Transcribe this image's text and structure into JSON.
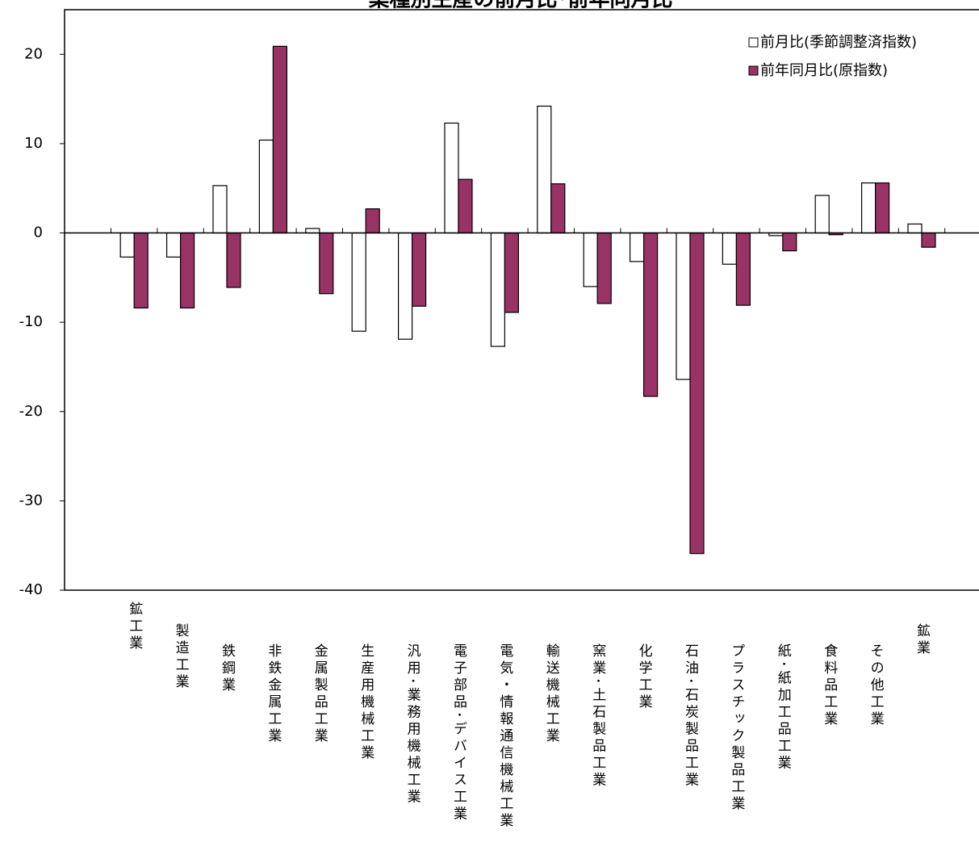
{
  "chart_data": {
    "type": "bar",
    "title": "業種別生産の前月比･前年同月比",
    "categories": [
      "鉱工業",
      "製造工業",
      "鉄鋼業",
      "非鉄金属工業",
      "金属製品工業",
      "生産用機械工業",
      "汎用･業務用機械工業",
      "電子部品･デバイス工業",
      "電気・情報通信機械工業",
      "輸送機械工業",
      "窯業･土石製品工業",
      "化学工業",
      "石油･石炭製品工業",
      "プラスチック製品工業",
      "紙･紙加工品工業",
      "食料品工業",
      "その他工業",
      "鉱業"
    ],
    "series": [
      {
        "name": "前月比(季節調整済指数)",
        "color": "#ffffff",
        "values": [
          -2.7,
          -2.7,
          5.3,
          10.4,
          0.5,
          -11.0,
          -11.9,
          12.3,
          -12.7,
          14.2,
          -6.0,
          -3.2,
          -16.4,
          -3.5,
          -0.3,
          4.2,
          5.6,
          1.0
        ]
      },
      {
        "name": "前年同月比(原指数)",
        "color": "#993366",
        "values": [
          -8.4,
          -8.4,
          -6.1,
          20.9,
          -6.8,
          2.7,
          -8.2,
          6.0,
          -8.9,
          5.5,
          -7.9,
          -18.3,
          -35.9,
          -8.1,
          -2.0,
          -0.2,
          5.6,
          -1.6
        ]
      }
    ],
    "ylim": [
      -40,
      25
    ],
    "yticks": [
      -40,
      -30,
      -20,
      -10,
      0,
      10,
      20
    ],
    "legend": "top-right"
  }
}
